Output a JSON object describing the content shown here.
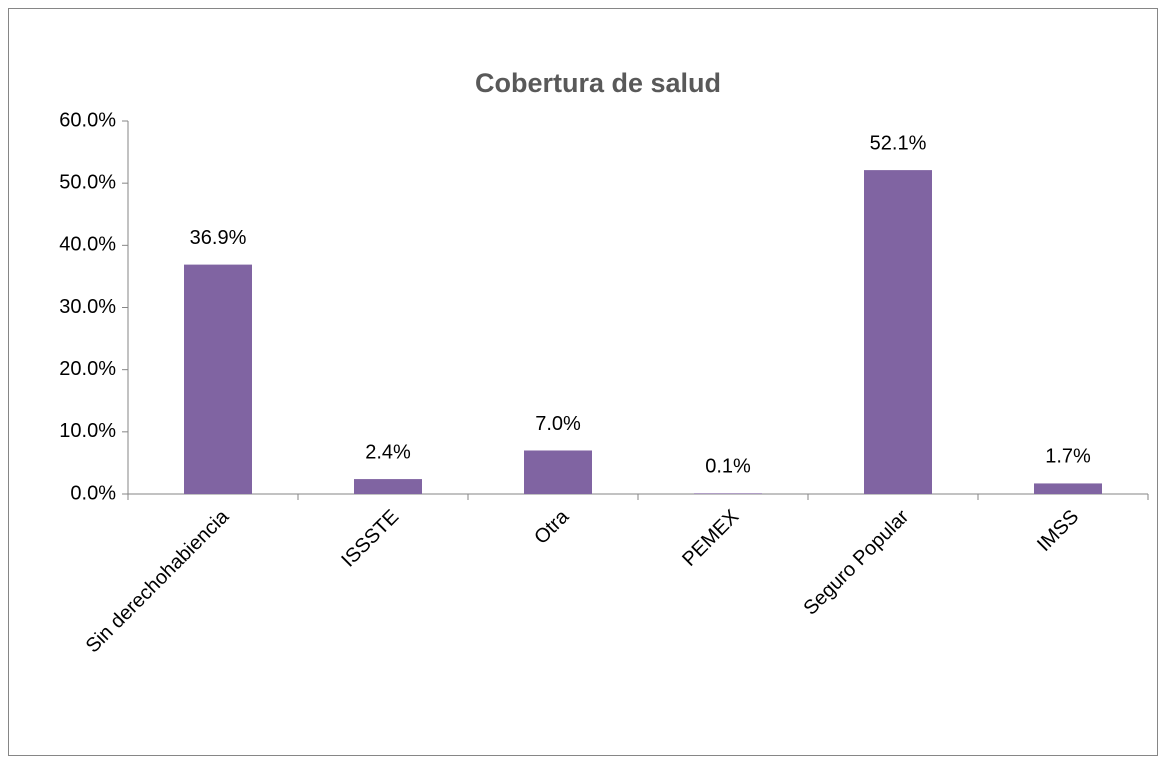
{
  "chart_data": {
    "type": "bar",
    "title": "Cobertura de salud",
    "categories": [
      "Sin derechohabiencia",
      "ISSSTE",
      "Otra",
      "PEMEX",
      "Seguro Popular",
      "IMSS"
    ],
    "values": [
      36.9,
      2.4,
      7.0,
      0.1,
      52.1,
      1.7
    ],
    "value_labels": [
      "36.9%",
      "2.4%",
      "7.0%",
      "0.1%",
      "52.1%",
      "1.7%"
    ],
    "color": "#8064a2",
    "ylim": [
      0,
      60
    ],
    "yticks": [
      {
        "value": 0,
        "label": "0.0%"
      },
      {
        "value": 10,
        "label": "10.0%"
      },
      {
        "value": 20,
        "label": "20.0%"
      },
      {
        "value": 30,
        "label": "30.0%"
      },
      {
        "value": 40,
        "label": "40.0%"
      },
      {
        "value": 50,
        "label": "50.0%"
      },
      {
        "value": 60,
        "label": "60.0%"
      }
    ],
    "grid": false
  }
}
